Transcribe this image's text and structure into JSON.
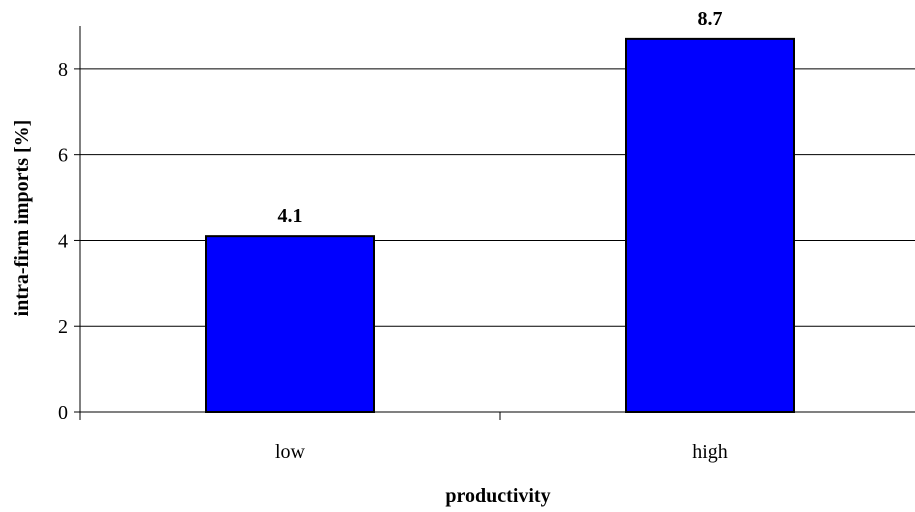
{
  "chart_data": {
    "type": "bar",
    "categories": [
      "low",
      "high"
    ],
    "values": [
      4.1,
      8.7
    ],
    "data_labels": [
      "4.1",
      "8.7"
    ],
    "xlabel": "productivity",
    "ylabel": "intra-firm imports [%]",
    "ylim": [
      0,
      9
    ],
    "yticks": [
      "0",
      "2",
      "4",
      "6",
      "8"
    ],
    "grid": true,
    "legend": "none",
    "bar_color": "#0000FF",
    "bar_edge_color": "#000000"
  }
}
